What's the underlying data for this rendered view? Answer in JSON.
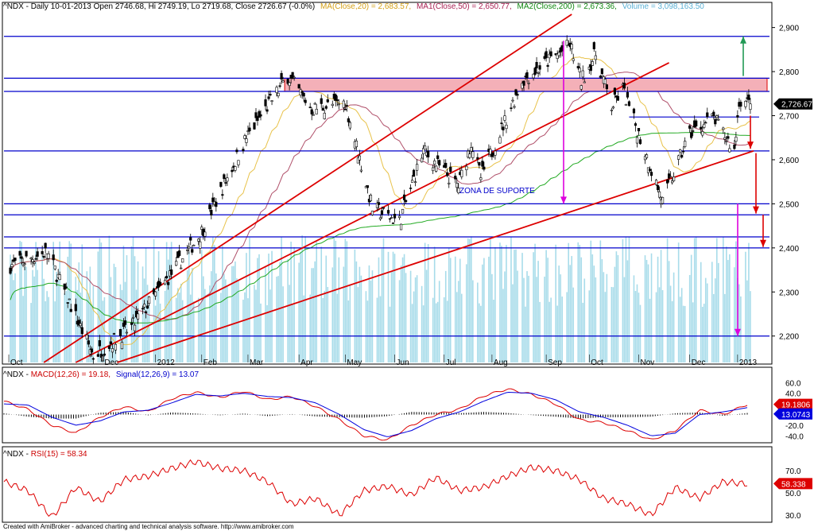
{
  "header": {
    "prefix": "^NDX - Daily 10-01-2013 Open 2746.68, Hi 2749.19, Lo 2719.68, Close 2726.67 (-0.0%)",
    "ma20": "MA(Close,20) = 2,683.57,",
    "ma50": "MA1(Close,50) = 2,650.77,",
    "ma200": "MA2(Close,200) = 2,673.36,",
    "volume": "Volume = 3,098,163.50"
  },
  "macd_header": {
    "prefix": "^NDX - ",
    "macd": "MACD(12,26) = 19.18,",
    "signal": "Signal(12,26,9) = 13.07"
  },
  "rsi_header": {
    "prefix": "^NDX - ",
    "rsi": "RSI(15) = 58.34"
  },
  "footer": "Created with AmiBroker - advanced charting and technical analysis software. http://www.amibroker.com",
  "annotation_zona": "ZONA DE SUPORTE",
  "colors": {
    "background": "#ffffff",
    "up": "#000000",
    "ma20": "#e8c24a",
    "ma50": "#b0506a",
    "ma200": "#22aa22",
    "volume": "#a8dcea",
    "blue_line": "#0000cc",
    "red_line": "#dd0000",
    "magenta": "#dd00dd",
    "green_arrow": "#229955",
    "resistance_box": "#f4b0b8",
    "macd": "#dd0000",
    "signal": "#0000dd",
    "rsi": "#dd0000"
  },
  "chart_data": [
    {
      "type": "candlestick",
      "panel": "price",
      "title": "^NDX - Daily 10-01-2013",
      "x_tick_labels": [
        "Oct",
        "Dec",
        "2012",
        "Feb",
        "Mar",
        "Apr",
        "May",
        "Jun",
        "Jul",
        "Aug",
        "Sep",
        "Oct",
        "Nov",
        "Dec",
        "2013"
      ],
      "y_tick_labels": [
        "2,900",
        "2,800",
        "2,700",
        "2,600",
        "2,500",
        "2,400",
        "2,300",
        "2,200"
      ],
      "ylim": [
        2140,
        2930
      ],
      "last_value_label": "2,726.67",
      "horizontal_levels": [
        2880,
        2785,
        2755,
        2697,
        2620,
        2500,
        2475,
        2425,
        2400,
        2200
      ],
      "resistance_zone": [
        2755,
        2785
      ],
      "key_points": [
        {
          "date": "2011-10-04",
          "close": 2360
        },
        {
          "date": "2011-10-27",
          "close": 2390
        },
        {
          "date": "2011-11-25",
          "close": 2155
        },
        {
          "date": "2011-12-19",
          "close": 2220
        },
        {
          "date": "2012-01-31",
          "close": 2430
        },
        {
          "date": "2012-02-29",
          "close": 2650
        },
        {
          "date": "2012-03-26",
          "close": 2790
        },
        {
          "date": "2012-04-10",
          "close": 2715
        },
        {
          "date": "2012-05-01",
          "close": 2730
        },
        {
          "date": "2012-05-18",
          "close": 2490
        },
        {
          "date": "2012-06-04",
          "close": 2460
        },
        {
          "date": "2012-06-19",
          "close": 2620
        },
        {
          "date": "2012-07-11",
          "close": 2540
        },
        {
          "date": "2012-07-19",
          "close": 2640
        },
        {
          "date": "2012-07-25",
          "close": 2560
        },
        {
          "date": "2012-08-20",
          "close": 2780
        },
        {
          "date": "2012-09-19",
          "close": 2860
        },
        {
          "date": "2012-09-26",
          "close": 2780
        },
        {
          "date": "2012-10-05",
          "close": 2840
        },
        {
          "date": "2012-10-15",
          "close": 2720
        },
        {
          "date": "2012-10-22",
          "close": 2760
        },
        {
          "date": "2012-11-16",
          "close": 2505
        },
        {
          "date": "2012-12-03",
          "close": 2660
        },
        {
          "date": "2012-12-18",
          "close": 2695
        },
        {
          "date": "2012-12-31",
          "close": 2620
        },
        {
          "date": "2013-01-03",
          "close": 2735
        },
        {
          "date": "2013-01-10",
          "close": 2726.67
        }
      ]
    },
    {
      "type": "line",
      "panel": "macd",
      "y_tick_labels": [
        "60.0",
        "40.0",
        "20.0",
        "-0.0",
        "-20.0",
        "-40.0"
      ],
      "ylim": [
        -50,
        65
      ],
      "last_value_labels": [
        "19.1806",
        "13.0743"
      ],
      "series": [
        {
          "name": "MACD(12,26)",
          "values": [
            25,
            10,
            -20,
            -35,
            -5,
            15,
            5,
            30,
            42,
            32,
            44,
            28,
            34,
            15,
            -10,
            -40,
            -48,
            -20,
            0,
            10,
            35,
            48,
            38,
            20,
            -10,
            -15,
            -30,
            -48,
            -30,
            8,
            0,
            19
          ]
        },
        {
          "name": "Signal(12,26,9)",
          "values": [
            20,
            18,
            -5,
            -20,
            -12,
            5,
            8,
            22,
            38,
            35,
            40,
            34,
            32,
            22,
            0,
            -28,
            -42,
            -30,
            -8,
            5,
            25,
            42,
            40,
            28,
            5,
            -5,
            -20,
            -40,
            -35,
            0,
            5,
            13
          ]
        }
      ]
    },
    {
      "type": "line",
      "panel": "rsi",
      "y_tick_labels": [
        "70.0",
        "50.0",
        "30.0"
      ],
      "ylim": [
        25,
        80
      ],
      "last_value_label": "58.338",
      "series": [
        {
          "name": "RSI(15)",
          "values": [
            60,
            52,
            28,
            55,
            42,
            62,
            65,
            72,
            78,
            72,
            70,
            60,
            40,
            45,
            30,
            52,
            56,
            48,
            64,
            52,
            55,
            65,
            73,
            70,
            62,
            45,
            40,
            30,
            55,
            45,
            60,
            58
          ]
        }
      ]
    }
  ]
}
